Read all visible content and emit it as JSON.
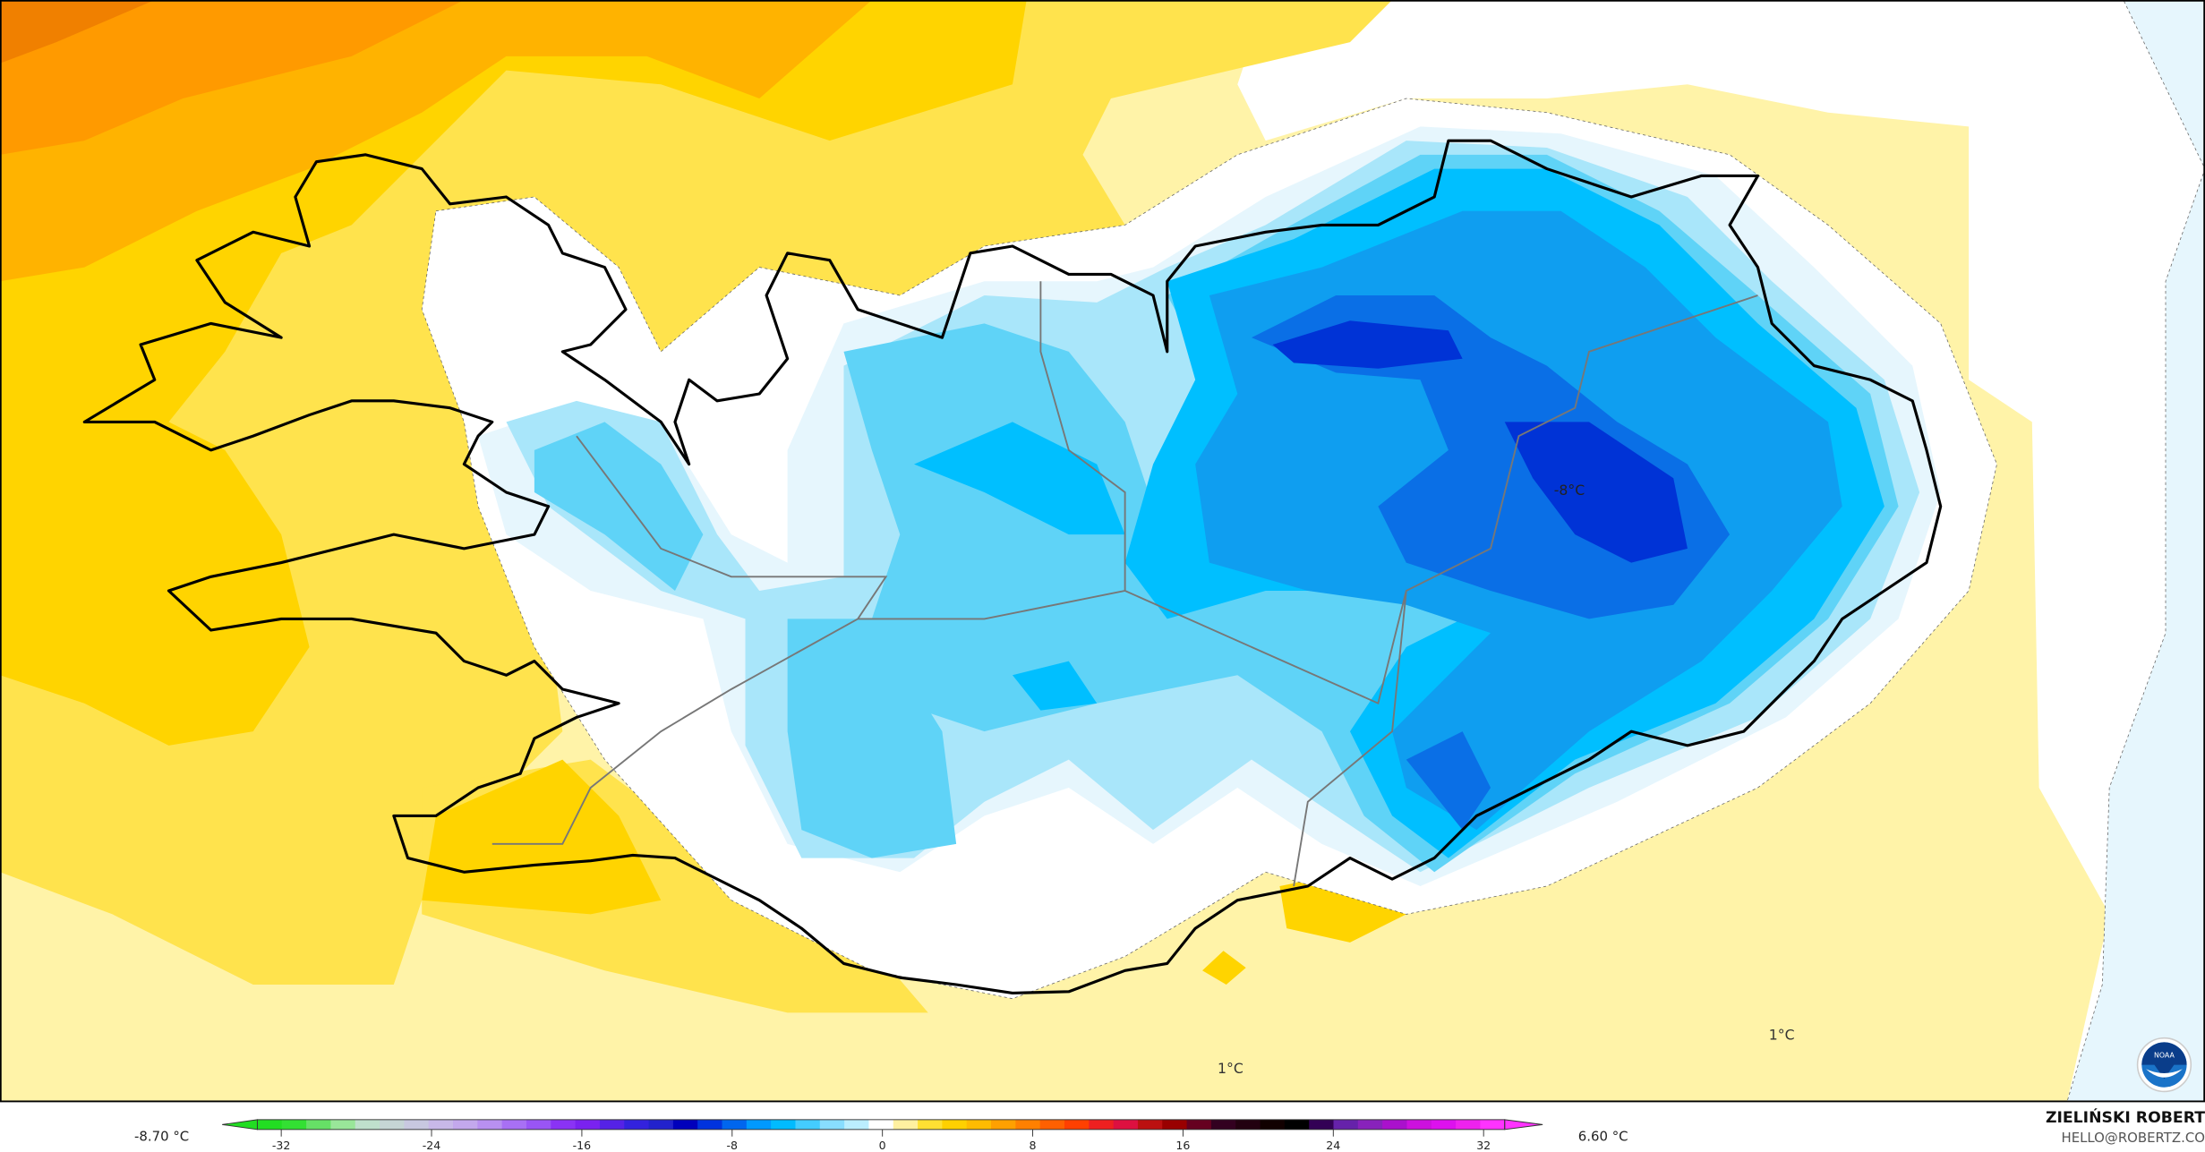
{
  "map": {
    "labels": {
      "center_low": "-8°C",
      "south_1": "1°C",
      "southeast_1": "1°C"
    },
    "fill_colors": {
      "deep_orange": "#ff9a00",
      "orange": "#ffb300",
      "gold": "#ffd400",
      "yellow": "#ffe34d",
      "light_yellow": "#fff3a8",
      "white": "#ffffff",
      "very_light_blue": "#e6f6fd",
      "light_blue": "#a9e6fa",
      "sky_blue": "#5fd3f7",
      "cyan_blue": "#00bfff",
      "blue": "#0f9ef0",
      "mid_blue": "#0a6fe6",
      "deep_blue": "#0033d6"
    }
  },
  "legend": {
    "min_label": "-8.70 °C",
    "max_label": "6.60 °C",
    "ticks": [
      "-32",
      "-24",
      "-16",
      "-8",
      "0",
      "8",
      "16",
      "24",
      "32"
    ],
    "colors": [
      "#22dd22",
      "#33e033",
      "#66e066",
      "#99e699",
      "#bfe0cc",
      "#c5d5d5",
      "#c8c8e0",
      "#c8b8e8",
      "#c3a8ec",
      "#b890f0",
      "#a870f4",
      "#9955f5",
      "#8a33f5",
      "#7a22f0",
      "#5522e6",
      "#3322dd",
      "#2222cc",
      "#0000bb",
      "#0033dd",
      "#0066ee",
      "#0099ff",
      "#00bbff",
      "#44ccff",
      "#88ddff",
      "#bbeeff",
      "#ffffff",
      "#fff0a0",
      "#ffe033",
      "#ffd000",
      "#ffbb00",
      "#ffa000",
      "#ff8000",
      "#ff6000",
      "#ff4000",
      "#ee2020",
      "#dd1040",
      "#bb1010",
      "#990000",
      "#660020",
      "#330020",
      "#220010",
      "#110000",
      "#000000",
      "#330055",
      "#6622aa",
      "#8822bb",
      "#aa11cc",
      "#cc11dd",
      "#dd11ee",
      "#ee22ee",
      "#ff33ff"
    ]
  },
  "credit": {
    "name": "ZIELIŃSKI ROBERT",
    "email": "HELLO@ROBERTZ.CO",
    "logo_text": "NOAA"
  }
}
